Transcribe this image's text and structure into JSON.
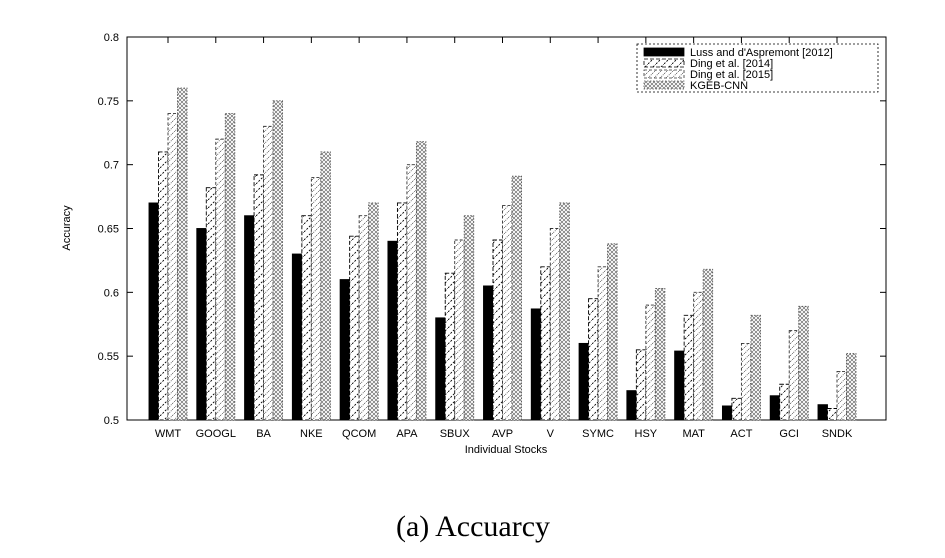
{
  "chart_data": {
    "type": "bar",
    "ylabel": "Accuracy",
    "xlabel": "Individual Stocks",
    "ylim": [
      0.5,
      0.8
    ],
    "yticks": [
      "0.5",
      "0.55",
      "0.6",
      "0.65",
      "0.7",
      "0.75",
      "0.8"
    ],
    "categories": [
      "WMT",
      "GOOGL",
      "BA",
      "NKE",
      "QCOM",
      "APA",
      "SBUX",
      "AVP",
      "V",
      "SYMC",
      "HSY",
      "MAT",
      "ACT",
      "GCI",
      "SNDK"
    ],
    "series": [
      {
        "name": "Luss and d'Aspremont [2012]",
        "values": [
          0.67,
          0.65,
          0.66,
          0.63,
          0.61,
          0.64,
          0.58,
          0.605,
          0.587,
          0.56,
          0.523,
          0.554,
          0.511,
          0.519,
          0.512
        ]
      },
      {
        "name": "Ding et al. [2014]",
        "values": [
          0.71,
          0.682,
          0.692,
          0.66,
          0.644,
          0.67,
          0.615,
          0.641,
          0.62,
          0.595,
          0.555,
          0.582,
          0.517,
          0.528,
          0.509
        ]
      },
      {
        "name": "Ding et al. [2015]",
        "values": [
          0.74,
          0.72,
          0.73,
          0.69,
          0.66,
          0.7,
          0.641,
          0.668,
          0.65,
          0.62,
          0.59,
          0.6,
          0.56,
          0.57,
          0.538
        ]
      },
      {
        "name": "KGEB-CNN",
        "values": [
          0.76,
          0.74,
          0.75,
          0.71,
          0.67,
          0.718,
          0.66,
          0.691,
          0.67,
          0.638,
          0.603,
          0.618,
          0.582,
          0.589,
          0.552
        ]
      }
    ],
    "legend": "top-right",
    "grid": false
  },
  "caption": "(a)  Accuarcy",
  "colors": {
    "series0": "#000000",
    "series1": "#000000",
    "series2": "#444444",
    "series3": "#555555"
  }
}
